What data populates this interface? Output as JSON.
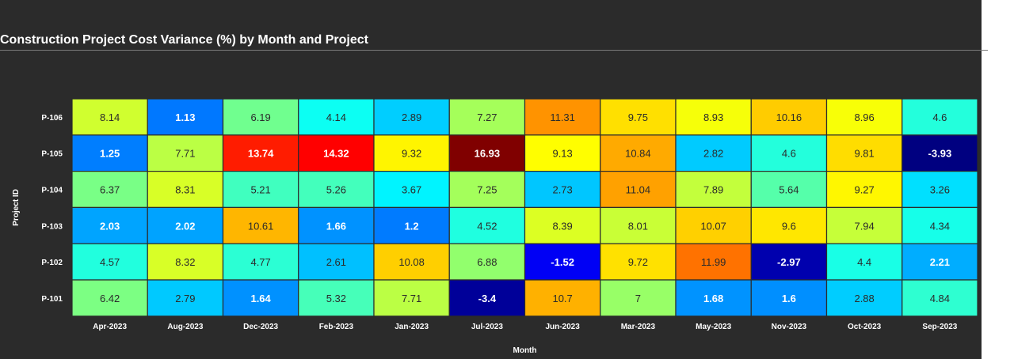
{
  "title": "Construction Project Cost Variance (%) by Month and Project",
  "chart_data": {
    "type": "heatmap",
    "title": "Construction Project Cost Variance (%) by Month and Project",
    "xlabel": "Month",
    "ylabel": "Project ID",
    "x_categories": [
      "Apr-2023",
      "Aug-2023",
      "Dec-2023",
      "Feb-2023",
      "Jan-2023",
      "Jul-2023",
      "Jun-2023",
      "Mar-2023",
      "May-2023",
      "Nov-2023",
      "Oct-2023",
      "Sep-2023"
    ],
    "y_categories": [
      "P-106",
      "P-105",
      "P-104",
      "P-103",
      "P-102",
      "P-101"
    ],
    "values": [
      [
        8.14,
        1.13,
        6.19,
        4.14,
        2.89,
        7.27,
        11.31,
        9.75,
        8.93,
        10.16,
        8.96,
        4.6
      ],
      [
        1.25,
        7.71,
        13.74,
        14.32,
        9.32,
        16.93,
        9.13,
        10.84,
        2.82,
        4.6,
        9.81,
        -3.93
      ],
      [
        6.37,
        8.31,
        5.21,
        5.26,
        3.67,
        7.25,
        2.73,
        11.04,
        7.89,
        5.64,
        9.27,
        3.26
      ],
      [
        2.03,
        2.02,
        10.61,
        1.66,
        1.2,
        4.52,
        8.39,
        8.01,
        10.07,
        9.6,
        7.94,
        4.34
      ],
      [
        4.57,
        8.32,
        4.77,
        2.61,
        10.08,
        6.88,
        -1.52,
        9.72,
        11.99,
        -2.97,
        4.4,
        2.21
      ],
      [
        6.42,
        2.79,
        1.64,
        5.32,
        7.71,
        -3.4,
        10.7,
        7,
        1.68,
        1.6,
        2.88,
        4.84
      ]
    ],
    "colorscale": "jet",
    "value_range": [
      -3.93,
      16.93
    ],
    "cell_text": "value",
    "legend": "none",
    "grid": false
  }
}
